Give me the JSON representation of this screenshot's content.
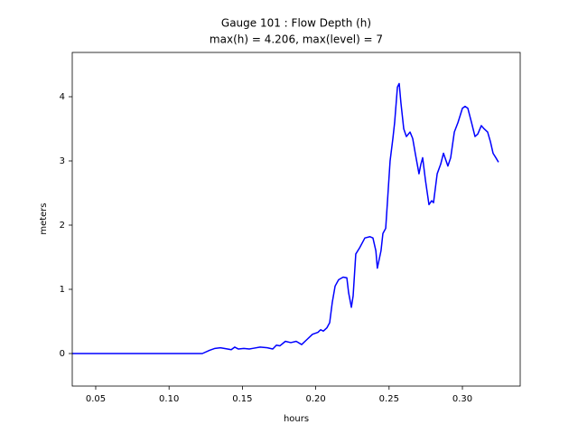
{
  "chart_data": {
    "type": "line",
    "title": "Gauge 101 : Flow Depth (h)",
    "subtitle": "max(h) =   4.206,    max(level) = 7",
    "xlabel": "hours",
    "ylabel": "meters",
    "xlim": [
      0.034,
      0.3394
    ],
    "ylim": [
      -0.507,
      4.69
    ],
    "xticks": [
      {
        "value": 0.05,
        "label": "0.05"
      },
      {
        "value": 0.1,
        "label": "0.10"
      },
      {
        "value": 0.15,
        "label": "0.15"
      },
      {
        "value": 0.2,
        "label": "0.20"
      },
      {
        "value": 0.25,
        "label": "0.25"
      },
      {
        "value": 0.3,
        "label": "0.30"
      }
    ],
    "yticks": [
      0,
      1,
      2,
      3,
      4
    ],
    "grid": false,
    "series": [
      {
        "color": "#0000ff",
        "x": [
          0.034,
          0.1227,
          0.1276,
          0.1313,
          0.135,
          0.1399,
          0.1424,
          0.1448,
          0.1473,
          0.151,
          0.1547,
          0.1571,
          0.1621,
          0.167,
          0.1707,
          0.1732,
          0.1756,
          0.1793,
          0.183,
          0.1867,
          0.1904,
          0.1941,
          0.1978,
          0.2015,
          0.2033,
          0.2052,
          0.2076,
          0.2095,
          0.2113,
          0.2132,
          0.2156,
          0.2187,
          0.2212,
          0.2224,
          0.2243,
          0.2255,
          0.2273,
          0.23,
          0.2335,
          0.237,
          0.239,
          0.241,
          0.242,
          0.2445,
          0.2458,
          0.2477,
          0.249,
          0.2507,
          0.2526,
          0.2538,
          0.2557,
          0.2569,
          0.2581,
          0.26,
          0.2618,
          0.2643,
          0.2661,
          0.268,
          0.2704,
          0.2717,
          0.2729,
          0.2748,
          0.2772,
          0.279,
          0.2803,
          0.2828,
          0.2852,
          0.2871,
          0.2889,
          0.2901,
          0.292,
          0.2945,
          0.297,
          0.3,
          0.3018,
          0.3037,
          0.3062,
          0.3086,
          0.3105,
          0.3129,
          0.3148,
          0.3172,
          0.3191,
          0.3209,
          0.3228,
          0.3246
        ],
        "values": [
          0,
          0,
          0.05,
          0.08,
          0.09,
          0.07,
          0.06,
          0.1,
          0.07,
          0.08,
          0.07,
          0.08,
          0.1,
          0.09,
          0.07,
          0.13,
          0.12,
          0.19,
          0.17,
          0.19,
          0.14,
          0.22,
          0.3,
          0.33,
          0.37,
          0.35,
          0.4,
          0.48,
          0.8,
          1.05,
          1.15,
          1.19,
          1.18,
          0.95,
          0.72,
          0.9,
          1.55,
          1.65,
          1.8,
          1.82,
          1.8,
          1.6,
          1.33,
          1.6,
          1.87,
          1.95,
          2.4,
          3.0,
          3.35,
          3.6,
          4.15,
          4.206,
          3.9,
          3.5,
          3.38,
          3.45,
          3.35,
          3.1,
          2.8,
          2.95,
          3.05,
          2.7,
          2.32,
          2.38,
          2.35,
          2.8,
          2.95,
          3.12,
          3.0,
          2.92,
          3.05,
          3.45,
          3.6,
          3.82,
          3.85,
          3.82,
          3.6,
          3.38,
          3.42,
          3.55,
          3.5,
          3.45,
          3.3,
          3.12,
          3.05,
          2.98
        ]
      }
    ]
  }
}
